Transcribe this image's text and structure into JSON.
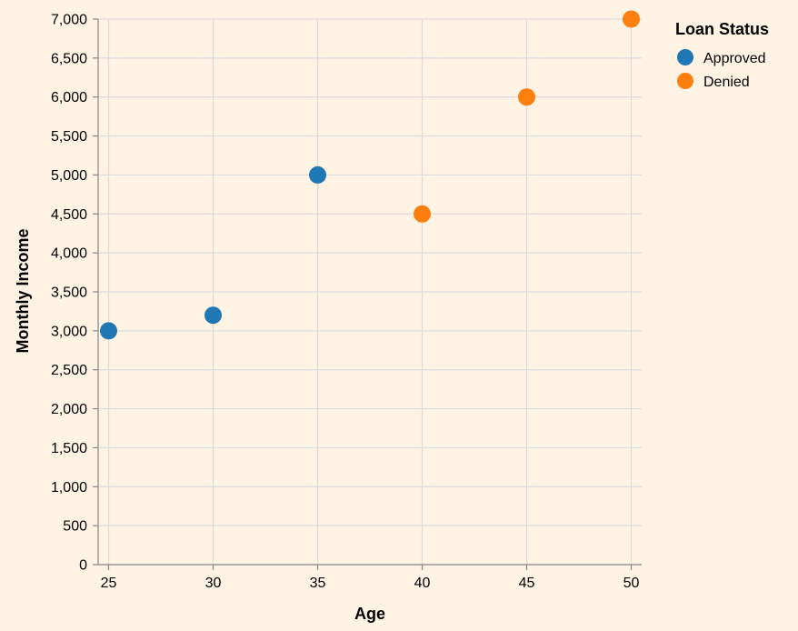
{
  "chart_data": {
    "type": "scatter",
    "xlabel": "Age",
    "ylabel": "Monthly Income",
    "xlim": [
      24.5,
      50.5
    ],
    "ylim": [
      0,
      7000
    ],
    "x_ticks": [
      25,
      30,
      35,
      40,
      45,
      50
    ],
    "y_ticks": [
      0,
      500,
      1000,
      1500,
      2000,
      2500,
      3000,
      3500,
      4000,
      4500,
      5000,
      5500,
      6000,
      6500,
      7000
    ],
    "y_tick_labels": [
      "0",
      "500",
      "1,000",
      "1,500",
      "2,000",
      "2,500",
      "3,000",
      "3,500",
      "4,000",
      "4,500",
      "5,000",
      "5,500",
      "6,000",
      "6,500",
      "7,000"
    ],
    "grid": true,
    "legend": {
      "title": "Loan Status",
      "placement": "top-right",
      "entries": [
        {
          "label": "Approved",
          "color": "#1f77b4"
        },
        {
          "label": "Denied",
          "color": "#ff7f0e"
        }
      ]
    },
    "series": [
      {
        "name": "Approved",
        "color": "#1f77b4",
        "points": [
          {
            "x": 25,
            "y": 3000
          },
          {
            "x": 30,
            "y": 3200
          },
          {
            "x": 35,
            "y": 5000
          }
        ]
      },
      {
        "name": "Denied",
        "color": "#ff7f0e",
        "points": [
          {
            "x": 40,
            "y": 4500
          },
          {
            "x": 45,
            "y": 6000
          },
          {
            "x": 50,
            "y": 7000
          }
        ]
      }
    ]
  }
}
